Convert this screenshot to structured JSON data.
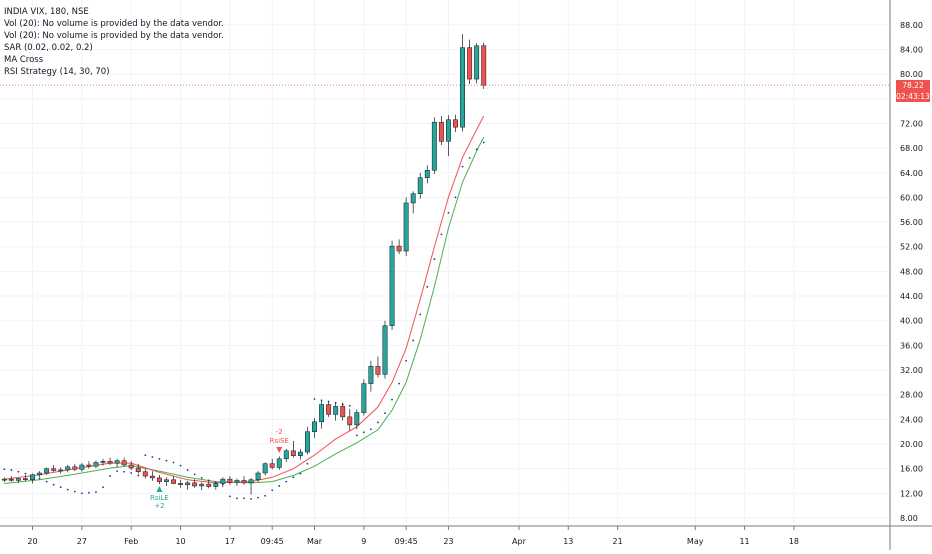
{
  "legend": {
    "title": "INDIA VIX, 180, NSE",
    "lines": [
      "Vol (20): No volume is provided by the data vendor.",
      "Vol (20): No volume is provided by the data vendor.",
      "SAR (0.02, 0.02, 0.2)",
      "MA Cross",
      "RSI Strategy (14, 30, 70)"
    ]
  },
  "price_badge": "78.22",
  "countdown_badge": "02:43:13",
  "colors": {
    "up": "#26a69a",
    "down": "#ef5350",
    "ma_fast": "#ef5350",
    "ma_slow": "#4caf50",
    "sar": "#1e3a8a",
    "grid": "#f0f3fa",
    "axis_text": "#131722"
  },
  "signals": [
    {
      "label": "RsiSE",
      "qty": "-2",
      "color": "#ef5350",
      "date": "Mar 02"
    },
    {
      "label": "RsiLE",
      "qty": "+2",
      "color": "#26a69a",
      "date": "Feb 05"
    }
  ],
  "chart_data": {
    "type": "candlestick",
    "title": "INDIA VIX, 180, NSE",
    "ylim": [
      6.4,
      90.0
    ],
    "y_ticks": [
      "88.00",
      "84.00",
      "80.00",
      "76.00",
      "72.00",
      "68.00",
      "64.00",
      "60.00",
      "56.00",
      "52.00",
      "48.00",
      "44.00",
      "40.00",
      "36.00",
      "32.00",
      "28.00",
      "24.00",
      "20.00",
      "16.00",
      "12.00",
      "8.00"
    ],
    "x_ticks": [
      {
        "label": "20",
        "i": 4
      },
      {
        "label": "27",
        "i": 11
      },
      {
        "label": "Feb",
        "i": 18
      },
      {
        "label": "10",
        "i": 25
      },
      {
        "label": "17",
        "i": 32
      },
      {
        "label": "09:45",
        "i": 38
      },
      {
        "label": "Mar",
        "i": 44
      },
      {
        "label": "9",
        "i": 51
      },
      {
        "label": "09:45",
        "i": 57
      },
      {
        "label": "23",
        "i": 63
      },
      {
        "label": "Apr",
        "i": 73
      },
      {
        "label": "13",
        "i": 80
      },
      {
        "label": "21",
        "i": 87
      },
      {
        "label": "May",
        "i": 98
      },
      {
        "label": "11",
        "i": 105
      },
      {
        "label": "18",
        "i": 112
      }
    ],
    "candles": [
      [
        14.2,
        14.6,
        13.8,
        14.3
      ],
      [
        14.3,
        14.8,
        13.9,
        14.1
      ],
      [
        14.1,
        14.5,
        13.7,
        14.4
      ],
      [
        14.4,
        15.0,
        14.0,
        14.2
      ],
      [
        14.2,
        15.2,
        13.6,
        15.0
      ],
      [
        15.0,
        15.6,
        14.6,
        15.3
      ],
      [
        15.3,
        16.2,
        15.0,
        16.0
      ],
      [
        16.0,
        16.6,
        15.5,
        15.7
      ],
      [
        15.7,
        16.2,
        15.2,
        15.8
      ],
      [
        15.8,
        16.6,
        15.4,
        16.3
      ],
      [
        16.3,
        16.8,
        15.6,
        15.9
      ],
      [
        15.9,
        16.9,
        15.5,
        16.6
      ],
      [
        16.6,
        17.2,
        16.0,
        16.4
      ],
      [
        16.4,
        17.3,
        16.1,
        17.0
      ],
      [
        17.0,
        17.6,
        16.5,
        17.2
      ],
      [
        17.2,
        17.8,
        16.6,
        16.9
      ],
      [
        16.9,
        17.6,
        16.2,
        17.3
      ],
      [
        17.3,
        17.8,
        16.4,
        16.6
      ],
      [
        16.6,
        17.2,
        15.8,
        16.1
      ],
      [
        16.1,
        16.8,
        15.2,
        15.5
      ],
      [
        15.5,
        16.0,
        14.4,
        14.8
      ],
      [
        14.8,
        15.6,
        14.0,
        14.5
      ],
      [
        14.5,
        15.0,
        13.5,
        13.9
      ],
      [
        13.9,
        14.6,
        13.2,
        14.2
      ],
      [
        14.2,
        14.8,
        13.5,
        13.6
      ],
      [
        13.6,
        14.2,
        12.9,
        13.4
      ],
      [
        13.4,
        14.0,
        12.6,
        13.7
      ],
      [
        13.7,
        14.3,
        12.9,
        13.2
      ],
      [
        13.2,
        13.8,
        12.5,
        13.5
      ],
      [
        13.5,
        14.0,
        12.8,
        13.1
      ],
      [
        13.1,
        13.9,
        12.6,
        13.6
      ],
      [
        13.6,
        14.6,
        13.0,
        14.3
      ],
      [
        14.3,
        14.8,
        13.4,
        13.8
      ],
      [
        13.8,
        14.4,
        13.2,
        14.1
      ],
      [
        14.1,
        14.8,
        13.4,
        13.7
      ],
      [
        13.7,
        14.5,
        11.8,
        14.2
      ],
      [
        14.2,
        15.6,
        13.8,
        15.3
      ],
      [
        15.3,
        17.0,
        14.9,
        16.8
      ],
      [
        16.8,
        17.6,
        15.9,
        16.2
      ],
      [
        16.2,
        18.0,
        15.8,
        17.6
      ],
      [
        17.6,
        19.2,
        17.1,
        18.9
      ],
      [
        18.9,
        20.5,
        17.8,
        18.1
      ],
      [
        18.1,
        19.2,
        17.5,
        18.7
      ],
      [
        18.7,
        22.8,
        18.3,
        22.0
      ],
      [
        22.0,
        24.2,
        21.0,
        23.6
      ],
      [
        23.6,
        27.0,
        22.5,
        26.4
      ],
      [
        26.4,
        26.9,
        24.4,
        24.8
      ],
      [
        24.8,
        26.6,
        23.8,
        26.1
      ],
      [
        26.1,
        26.7,
        23.8,
        24.4
      ],
      [
        24.4,
        25.7,
        22.2,
        23.1
      ],
      [
        23.1,
        25.6,
        22.4,
        25.1
      ],
      [
        25.1,
        30.5,
        24.6,
        29.8
      ],
      [
        29.8,
        33.5,
        28.5,
        32.6
      ],
      [
        32.6,
        34.2,
        30.8,
        31.3
      ],
      [
        31.3,
        40.0,
        30.6,
        39.2
      ],
      [
        39.2,
        53.0,
        38.5,
        52.1
      ],
      [
        52.1,
        53.2,
        50.8,
        51.3
      ],
      [
        51.3,
        60.0,
        50.5,
        59.1
      ],
      [
        59.1,
        61.0,
        57.4,
        60.6
      ],
      [
        60.6,
        64.0,
        59.8,
        63.2
      ],
      [
        63.2,
        65.2,
        62.3,
        64.4
      ],
      [
        64.4,
        73.0,
        63.8,
        72.2
      ],
      [
        72.2,
        73.2,
        68.5,
        69.1
      ],
      [
        69.1,
        73.3,
        66.7,
        72.6
      ],
      [
        72.6,
        73.4,
        70.6,
        71.4
      ],
      [
        71.4,
        86.5,
        70.7,
        84.3
      ],
      [
        84.3,
        85.6,
        78.4,
        79.2
      ],
      [
        79.2,
        85.0,
        78.5,
        84.6
      ],
      [
        84.6,
        85.1,
        77.6,
        78.2
      ]
    ],
    "ma_fast": [
      [
        0,
        14.3
      ],
      [
        5,
        15.0
      ],
      [
        10,
        16.0
      ],
      [
        15,
        16.9
      ],
      [
        18,
        16.9
      ],
      [
        22,
        15.4
      ],
      [
        26,
        14.2
      ],
      [
        30,
        13.7
      ],
      [
        35,
        13.9
      ],
      [
        38,
        14.6
      ],
      [
        41,
        16.0
      ],
      [
        44,
        18.2
      ],
      [
        47,
        20.8
      ],
      [
        50,
        22.8
      ],
      [
        53,
        26.0
      ],
      [
        55,
        30.0
      ],
      [
        57,
        35.5
      ],
      [
        59,
        43.5
      ],
      [
        61,
        52.0
      ],
      [
        63,
        60.0
      ],
      [
        65,
        66.5
      ],
      [
        67,
        71.0
      ],
      [
        68,
        73.2
      ]
    ],
    "ma_slow": [
      [
        0,
        13.6
      ],
      [
        5,
        14.2
      ],
      [
        10,
        15.1
      ],
      [
        15,
        16.1
      ],
      [
        18,
        16.5
      ],
      [
        22,
        15.6
      ],
      [
        26,
        14.6
      ],
      [
        30,
        13.9
      ],
      [
        35,
        13.7
      ],
      [
        38,
        13.9
      ],
      [
        41,
        14.9
      ],
      [
        44,
        16.4
      ],
      [
        47,
        18.4
      ],
      [
        50,
        20.2
      ],
      [
        53,
        22.3
      ],
      [
        55,
        25.5
      ],
      [
        57,
        30.0
      ],
      [
        59,
        37.0
      ],
      [
        61,
        45.5
      ],
      [
        63,
        55.0
      ],
      [
        65,
        62.5
      ],
      [
        67,
        67.5
      ],
      [
        68,
        69.8
      ]
    ],
    "sar": [
      [
        0,
        15.9
      ],
      [
        1,
        15.8
      ],
      [
        2,
        15.5
      ],
      [
        3,
        15.2
      ],
      [
        4,
        14.8
      ],
      [
        5,
        14.4
      ],
      [
        6,
        13.9
      ],
      [
        7,
        13.4
      ],
      [
        8,
        13.0
      ],
      [
        9,
        12.6
      ],
      [
        10,
        12.3
      ],
      [
        11,
        12.0
      ],
      [
        12,
        12.1
      ],
      [
        13,
        12.2
      ],
      [
        14,
        13.0
      ],
      [
        15,
        14.8
      ],
      [
        16,
        15.6
      ],
      [
        17,
        15.5
      ],
      [
        18,
        15.3
      ],
      [
        19,
        14.9
      ],
      [
        20,
        18.2
      ],
      [
        21,
        17.9
      ],
      [
        22,
        17.6
      ],
      [
        23,
        17.3
      ],
      [
        24,
        17.0
      ],
      [
        25,
        16.5
      ],
      [
        26,
        15.8
      ],
      [
        27,
        15.1
      ],
      [
        28,
        14.5
      ],
      [
        29,
        14.1
      ],
      [
        30,
        13.8
      ],
      [
        31,
        13.5
      ],
      [
        32,
        11.5
      ],
      [
        33,
        11.2
      ],
      [
        34,
        11.2
      ],
      [
        35,
        11.1
      ],
      [
        36,
        11.3
      ],
      [
        37,
        11.6
      ],
      [
        38,
        12.5
      ],
      [
        39,
        13.2
      ],
      [
        40,
        13.9
      ],
      [
        41,
        14.6
      ],
      [
        42,
        15.2
      ],
      [
        43,
        16.8
      ],
      [
        44,
        27.3
      ],
      [
        45,
        27.1
      ],
      [
        46,
        26.9
      ],
      [
        47,
        26.7
      ],
      [
        48,
        26.4
      ],
      [
        49,
        26.2
      ],
      [
        50,
        21.4
      ],
      [
        51,
        21.9
      ],
      [
        52,
        22.4
      ],
      [
        53,
        23.5
      ],
      [
        54,
        25.0
      ],
      [
        55,
        27.2
      ],
      [
        56,
        29.8
      ],
      [
        57,
        33.5
      ],
      [
        58,
        36.8
      ],
      [
        59,
        41.0
      ],
      [
        60,
        45.5
      ],
      [
        61,
        50.0
      ],
      [
        62,
        54.0
      ],
      [
        63,
        57.5
      ],
      [
        64,
        60.0
      ],
      [
        65,
        65.0
      ],
      [
        66,
        66.4
      ],
      [
        67,
        67.8
      ],
      [
        68,
        68.9
      ]
    ]
  }
}
